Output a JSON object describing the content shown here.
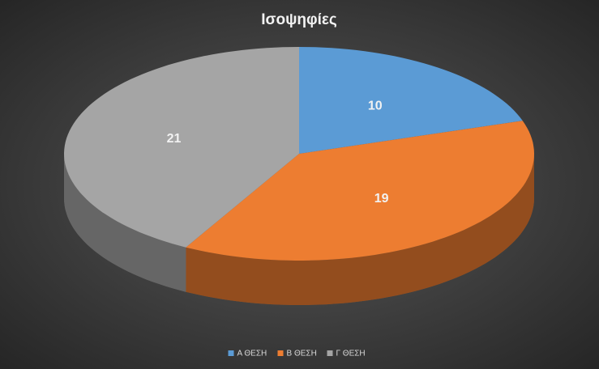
{
  "chart_data": {
    "type": "pie3d",
    "title": "Ισοψηφίες",
    "categories": [
      "Α ΘΕΣΗ",
      "Β ΘΕΣΗ",
      "Γ ΘΕΣΗ"
    ],
    "values": [
      10,
      19,
      21
    ],
    "colors": [
      "#5b9bd5",
      "#ed7d31",
      "#a5a5a5"
    ]
  }
}
